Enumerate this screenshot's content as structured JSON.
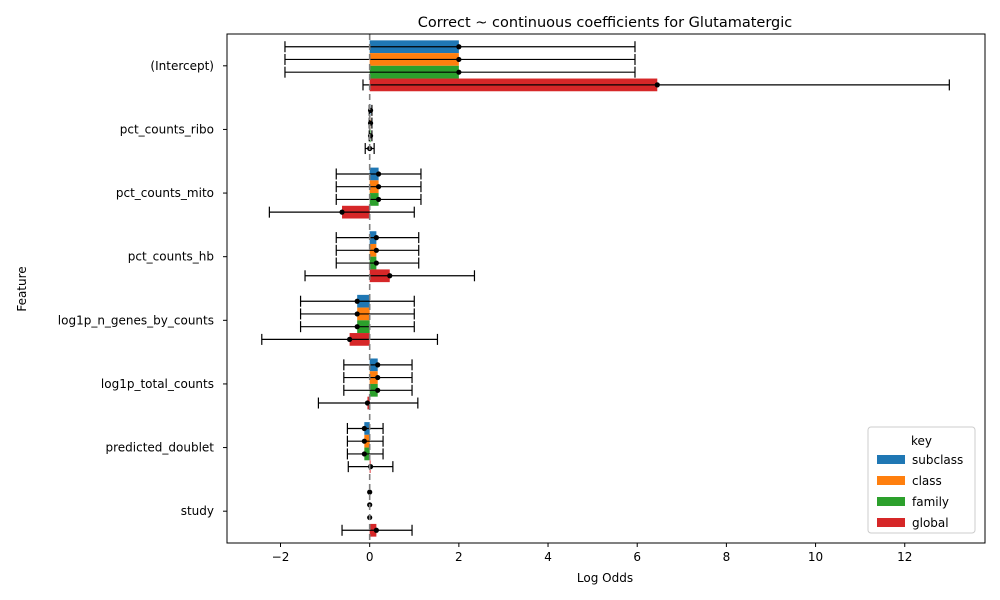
{
  "chart_data": {
    "type": "bar",
    "orientation": "horizontal",
    "title": "Correct ~ continuous coefficients for Glutamatergic",
    "xlabel": "Log Odds",
    "ylabel": "Feature",
    "xlim": [
      -3.2,
      13.8
    ],
    "xticks": [
      -2,
      0,
      2,
      4,
      6,
      8,
      10,
      12
    ],
    "xtick_labels": [
      "−2",
      "0",
      "2",
      "4",
      "6",
      "8",
      "10",
      "12"
    ],
    "reference_line": 0,
    "categories": [
      "(Intercept)",
      "pct_counts_ribo",
      "pct_counts_mito",
      "pct_counts_hb",
      "log1p_n_genes_by_counts",
      "log1p_total_counts",
      "predicted_doublet",
      "study"
    ],
    "legend": {
      "title": "key",
      "position": "lower-right"
    },
    "series": [
      {
        "name": "subclass",
        "color": "#1f77b4",
        "values": [
          2.0,
          0.02,
          0.2,
          0.15,
          -0.28,
          0.18,
          -0.12,
          0.0
        ],
        "ci_low": [
          -1.9,
          -0.01,
          -0.75,
          -0.75,
          -1.55,
          -0.58,
          -0.5,
          0.0
        ],
        "ci_high": [
          5.95,
          0.05,
          1.15,
          1.1,
          1.0,
          0.95,
          0.3,
          0.0
        ]
      },
      {
        "name": "class",
        "color": "#ff7f0e",
        "values": [
          2.0,
          0.02,
          0.2,
          0.15,
          -0.28,
          0.18,
          -0.12,
          0.0
        ],
        "ci_low": [
          -1.9,
          -0.01,
          -0.75,
          -0.75,
          -1.55,
          -0.58,
          -0.5,
          0.0
        ],
        "ci_high": [
          5.95,
          0.05,
          1.15,
          1.1,
          1.0,
          0.95,
          0.3,
          0.0
        ]
      },
      {
        "name": "family",
        "color": "#2ca02c",
        "values": [
          2.0,
          0.02,
          0.2,
          0.15,
          -0.28,
          0.18,
          -0.12,
          0.0
        ],
        "ci_low": [
          -1.9,
          -0.01,
          -0.75,
          -0.75,
          -1.55,
          -0.58,
          -0.5,
          0.0
        ],
        "ci_high": [
          5.95,
          0.05,
          1.15,
          1.1,
          1.0,
          0.95,
          0.3,
          0.0
        ]
      },
      {
        "name": "global",
        "color": "#d62728",
        "values": [
          6.45,
          0.0,
          -0.62,
          0.45,
          -0.45,
          -0.05,
          0.02,
          0.15
        ],
        "ci_low": [
          -0.15,
          -0.1,
          -2.25,
          -1.45,
          -2.42,
          -1.15,
          -0.48,
          -0.62
        ],
        "ci_high": [
          13.0,
          0.1,
          1.0,
          2.35,
          1.52,
          1.08,
          0.52,
          0.95
        ]
      }
    ]
  }
}
